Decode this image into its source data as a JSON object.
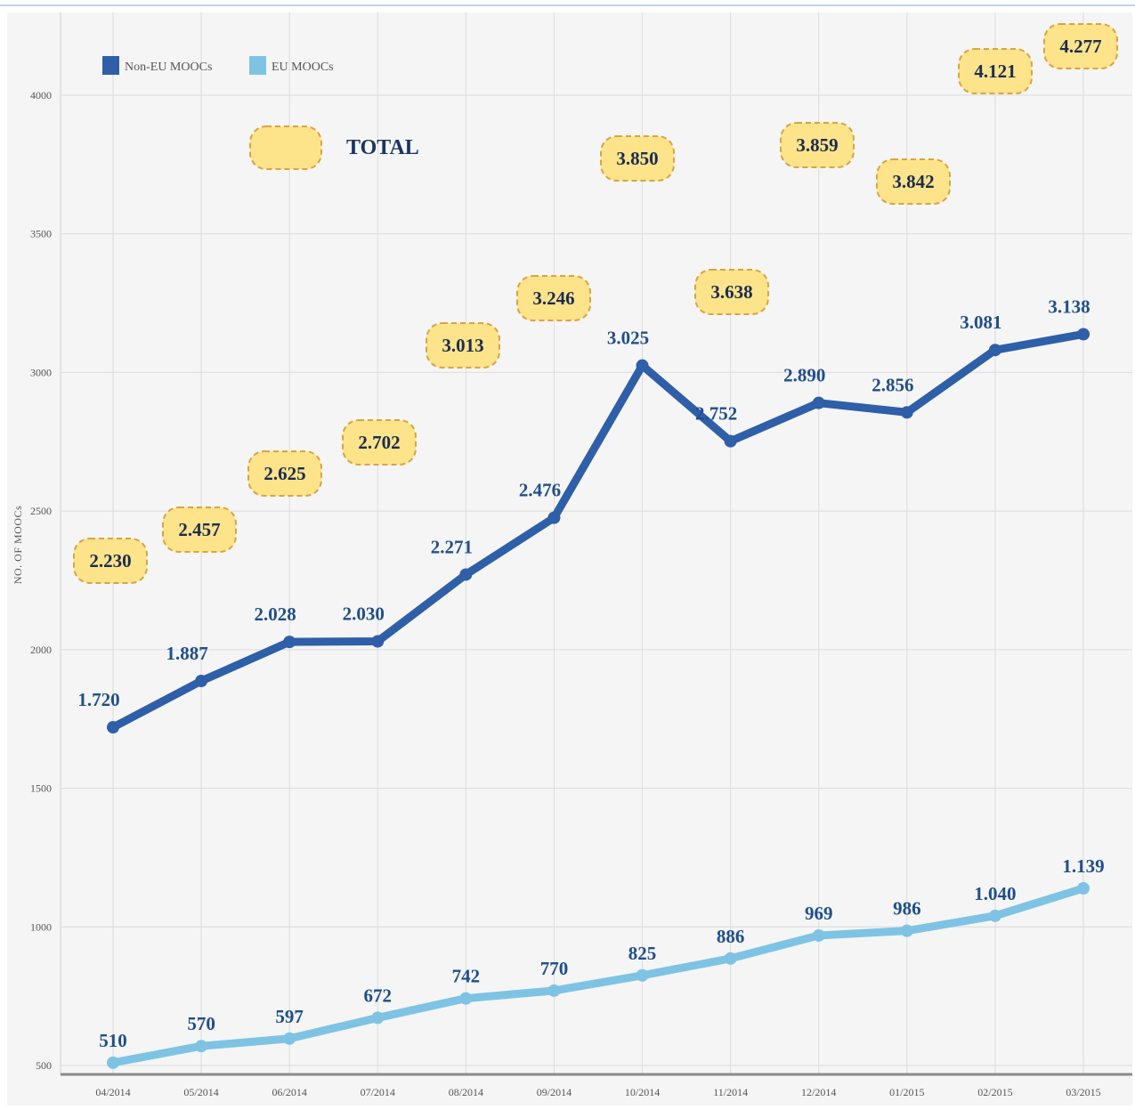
{
  "chart_data": {
    "type": "line",
    "categories": [
      "04/2014",
      "05/2014",
      "06/2014",
      "07/2014",
      "08/2014",
      "09/2014",
      "10/2014",
      "11/2014",
      "12/2014",
      "01/2015",
      "02/2015",
      "03/2015"
    ],
    "series": [
      {
        "name": "Non-EU MOOCs",
        "color": "#2e5fa8",
        "values": [
          1720,
          1887,
          2028,
          2030,
          2271,
          2476,
          3025,
          2752,
          2890,
          2856,
          3081,
          3138
        ],
        "labels": [
          "1.720",
          "1.887",
          "2.028",
          "2.030",
          "2.271",
          "2.476",
          "3.025",
          "2.752",
          "2.890",
          "2.856",
          "3.081",
          "3.138"
        ]
      },
      {
        "name": "EU MOOCs",
        "color": "#7ec3e3",
        "values": [
          510,
          570,
          597,
          672,
          742,
          770,
          825,
          886,
          969,
          986,
          1040,
          1139
        ],
        "labels": [
          "510",
          "570",
          "597",
          "672",
          "742",
          "770",
          "825",
          "886",
          "969",
          "986",
          "1.040",
          "1.139"
        ]
      }
    ],
    "totals": {
      "heading": "TOTAL",
      "values": [
        2230,
        2457,
        2625,
        2702,
        3013,
        3246,
        3850,
        3638,
        3859,
        3842,
        4121,
        4277
      ],
      "labels": [
        "2.230",
        "2.457",
        "2.625",
        "2.702",
        "3.013",
        "3.246",
        "3.850",
        "3.638",
        "3.859",
        "3.842",
        "4.121",
        "4.277"
      ]
    },
    "xlabel": "",
    "ylabel": "NO. OF MOOCs",
    "ylim": [
      480,
      4300
    ],
    "yticks": [
      500,
      1000,
      1500,
      2000,
      2500,
      3000,
      3500,
      4000
    ],
    "grid": true,
    "legend": {
      "placement": "top-left"
    }
  }
}
